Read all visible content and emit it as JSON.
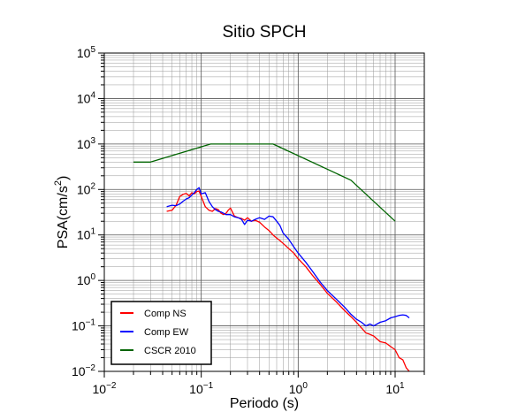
{
  "chart_data": {
    "type": "line",
    "title": "Sitio SPCH",
    "xlabel": "Periodo (s)",
    "ylabel": {
      "base": "PSA(cm/s",
      "sup": "2",
      "tail": ")"
    },
    "x_scale": "log",
    "y_scale": "log",
    "xlim": [
      0.01,
      20
    ],
    "ylim": [
      0.01,
      100000
    ],
    "grid": true,
    "legend_position": "bottom-left",
    "x_ticks": [
      {
        "value": 0.01,
        "base": "10",
        "exp": "−2"
      },
      {
        "value": 0.1,
        "base": "10",
        "exp": "−1"
      },
      {
        "value": 1,
        "base": "10",
        "exp": "0"
      },
      {
        "value": 10,
        "base": "10",
        "exp": "1"
      }
    ],
    "y_ticks": [
      {
        "value": 0.01,
        "base": "10",
        "exp": "−2"
      },
      {
        "value": 0.1,
        "base": "10",
        "exp": "−1"
      },
      {
        "value": 1,
        "base": "10",
        "exp": "0"
      },
      {
        "value": 10,
        "base": "10",
        "exp": "1"
      },
      {
        "value": 100,
        "base": "10",
        "exp": "2"
      },
      {
        "value": 1000,
        "base": "10",
        "exp": "3"
      },
      {
        "value": 10000,
        "base": "10",
        "exp": "4"
      },
      {
        "value": 100000,
        "base": "10",
        "exp": "5"
      }
    ],
    "series": [
      {
        "name": "Comp NS",
        "color": "#ff0000",
        "x": [
          0.044,
          0.05,
          0.055,
          0.06,
          0.065,
          0.07,
          0.075,
          0.08,
          0.085,
          0.09,
          0.095,
          0.1,
          0.11,
          0.12,
          0.13,
          0.14,
          0.15,
          0.16,
          0.17,
          0.18,
          0.19,
          0.2,
          0.22,
          0.24,
          0.26,
          0.28,
          0.3,
          0.33,
          0.36,
          0.4,
          0.45,
          0.5,
          0.55,
          0.6,
          0.65,
          0.7,
          0.8,
          0.9,
          1.0,
          1.2,
          1.4,
          1.7,
          2.0,
          2.5,
          3.0,
          3.5,
          4.0,
          4.5,
          5.0,
          5.5,
          6.0,
          7.0,
          8.0,
          9.0,
          10.0,
          11.0,
          12.0,
          13.0,
          14.0
        ],
        "y": [
          33,
          35,
          45,
          70,
          78,
          82,
          72,
          85,
          80,
          90,
          92,
          70,
          42,
          35,
          33,
          38,
          36,
          30,
          28,
          30,
          35,
          39,
          26,
          24,
          23,
          21,
          24,
          20,
          21,
          19,
          15,
          12.5,
          10,
          8.5,
          7.5,
          6.5,
          5,
          4,
          3,
          2,
          1.3,
          0.8,
          0.52,
          0.33,
          0.22,
          0.16,
          0.12,
          0.09,
          0.07,
          0.065,
          0.06,
          0.045,
          0.042,
          0.035,
          0.03,
          0.02,
          0.018,
          0.012,
          0.01
        ]
      },
      {
        "name": "Comp EW",
        "color": "#0000ff",
        "x": [
          0.044,
          0.05,
          0.055,
          0.06,
          0.065,
          0.07,
          0.075,
          0.08,
          0.085,
          0.09,
          0.095,
          0.1,
          0.11,
          0.12,
          0.13,
          0.14,
          0.15,
          0.16,
          0.17,
          0.18,
          0.19,
          0.2,
          0.22,
          0.24,
          0.26,
          0.28,
          0.3,
          0.33,
          0.36,
          0.4,
          0.45,
          0.5,
          0.55,
          0.6,
          0.65,
          0.7,
          0.8,
          0.9,
          1.0,
          1.2,
          1.4,
          1.7,
          2.0,
          2.5,
          3.0,
          3.5,
          4.0,
          4.5,
          5.0,
          5.5,
          6.0,
          7.0,
          8.0,
          9.0,
          10.0,
          11.0,
          12.0,
          13.0,
          14.0
        ],
        "y": [
          42,
          45,
          44,
          48,
          55,
          62,
          66,
          75,
          85,
          100,
          110,
          80,
          85,
          55,
          42,
          36,
          33,
          32,
          30,
          28,
          28,
          28,
          25,
          24,
          22,
          17,
          21,
          20,
          22,
          24,
          22,
          26,
          25,
          20,
          16,
          11,
          8,
          5.5,
          4,
          2.5,
          1.6,
          0.9,
          0.6,
          0.38,
          0.26,
          0.18,
          0.14,
          0.12,
          0.1,
          0.11,
          0.1,
          0.12,
          0.13,
          0.15,
          0.16,
          0.17,
          0.175,
          0.17,
          0.15
        ]
      },
      {
        "name": "CSCR 2010",
        "color": "#006400",
        "x": [
          0.02,
          0.03,
          0.125,
          0.55,
          3.5,
          10
        ],
        "y": [
          400,
          400,
          1000,
          1000,
          160,
          20
        ]
      }
    ]
  }
}
